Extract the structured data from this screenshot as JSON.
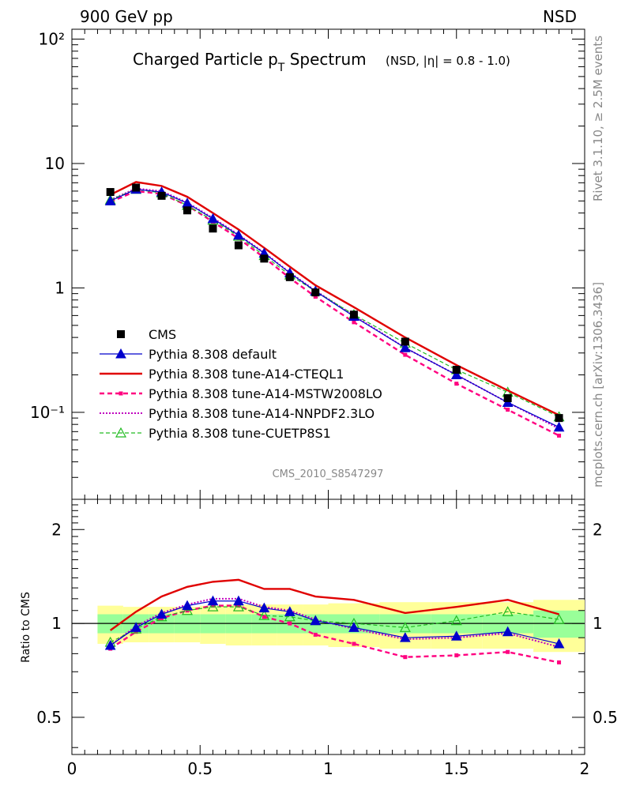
{
  "header": {
    "energy_label": "900 GeV pp",
    "process_label": "NSD",
    "title_main": "Charged Particle p",
    "title_sub": "T",
    "title_tail": " Spectrum",
    "title_cut": "(NSD, |η| = 0.8 - 1.0)",
    "side_label_top": "Rivet 3.1.10, ≥ 2.5M events",
    "side_label_bottom": "mcplots.cern.ch [arXiv:1306.3436]",
    "analysis_id": "CMS_2010_S8547297"
  },
  "colors": {
    "cms": "#000000",
    "default": "#0000cc",
    "cteql1": "#e00000",
    "mstw": "#ff0080",
    "nnpdf": "#c000c0",
    "cuetp8s1": "#22bb22",
    "band_outer": "#ffff99",
    "band_inner": "#99ff99"
  },
  "chart_data": [
    {
      "type": "line",
      "yscale": "log",
      "xlim": [
        0,
        2
      ],
      "ylim": [
        0.02,
        120
      ],
      "ytick_labels": [
        "10⁻¹",
        "1",
        "10",
        "10²"
      ],
      "x": [
        0.15,
        0.25,
        0.35,
        0.45,
        0.55,
        0.65,
        0.75,
        0.85,
        0.95,
        1.1,
        1.3,
        1.5,
        1.7,
        1.9
      ],
      "series": [
        {
          "name": "CMS",
          "values": [
            5.9,
            6.4,
            5.5,
            4.2,
            3.0,
            2.2,
            1.72,
            1.22,
            0.92,
            0.61,
            0.37,
            0.22,
            0.13,
            0.09
          ]
        },
        {
          "name": "Pythia 8.308 default",
          "values": [
            5.0,
            6.2,
            5.9,
            4.8,
            3.6,
            2.65,
            1.9,
            1.32,
            0.94,
            0.59,
            0.33,
            0.2,
            0.12,
            0.076
          ]
        },
        {
          "name": "Pythia 8.308 tune-A14-CTEQL1",
          "values": [
            5.6,
            7.1,
            6.6,
            5.4,
            4.0,
            2.95,
            2.1,
            1.48,
            1.05,
            0.7,
            0.4,
            0.24,
            0.15,
            0.095
          ]
        },
        {
          "name": "Pythia 8.308 tune-A14-MSTW2008LO",
          "values": [
            4.9,
            6.0,
            5.7,
            4.6,
            3.4,
            2.5,
            1.75,
            1.2,
            0.85,
            0.53,
            0.29,
            0.17,
            0.105,
            0.065
          ]
        },
        {
          "name": "Pythia 8.308 tune-A14-NNPDF2.3LO",
          "values": [
            5.1,
            6.3,
            6.0,
            4.85,
            3.65,
            2.68,
            1.92,
            1.33,
            0.95,
            0.6,
            0.33,
            0.2,
            0.12,
            0.074
          ]
        },
        {
          "name": "Pythia 8.308 tune-CUETP8S1",
          "values": [
            5.1,
            6.2,
            5.8,
            4.6,
            3.5,
            2.6,
            1.82,
            1.27,
            0.94,
            0.61,
            0.36,
            0.22,
            0.145,
            0.092
          ]
        }
      ]
    },
    {
      "type": "line",
      "yscale": "log",
      "ylabel": "Ratio to CMS",
      "xlim": [
        0,
        2
      ],
      "ylim": [
        0.38,
        2.5
      ],
      "ytick_labels": [
        "0.5",
        "1",
        "2"
      ],
      "xtick_labels": [
        "0",
        "0.5",
        "1",
        "1.5",
        "2"
      ],
      "bins": [
        0.1,
        0.2,
        0.3,
        0.4,
        0.5,
        0.6,
        0.7,
        0.8,
        0.9,
        1.0,
        1.2,
        1.4,
        1.6,
        1.8,
        2.0
      ],
      "band_inner": [
        0.07,
        0.07,
        0.07,
        0.07,
        0.07,
        0.07,
        0.07,
        0.07,
        0.07,
        0.07,
        0.07,
        0.07,
        0.07,
        0.1
      ],
      "band_outer": [
        0.14,
        0.13,
        0.13,
        0.13,
        0.14,
        0.15,
        0.15,
        0.15,
        0.15,
        0.16,
        0.17,
        0.17,
        0.17,
        0.19
      ],
      "x": [
        0.15,
        0.25,
        0.35,
        0.45,
        0.55,
        0.65,
        0.75,
        0.85,
        0.95,
        1.1,
        1.3,
        1.5,
        1.7,
        1.9
      ],
      "series": [
        {
          "name": "Pythia 8.308 default",
          "values": [
            0.85,
            0.97,
            1.07,
            1.14,
            1.18,
            1.18,
            1.12,
            1.09,
            1.02,
            0.97,
            0.9,
            0.91,
            0.94,
            0.86
          ]
        },
        {
          "name": "Pythia 8.308 tune-A14-CTEQL1",
          "values": [
            0.95,
            1.09,
            1.22,
            1.31,
            1.36,
            1.38,
            1.29,
            1.29,
            1.22,
            1.19,
            1.08,
            1.13,
            1.19,
            1.07
          ]
        },
        {
          "name": "Pythia 8.308 tune-A14-MSTW2008LO",
          "values": [
            0.83,
            0.94,
            1.04,
            1.1,
            1.14,
            1.14,
            1.05,
            1.0,
            0.92,
            0.86,
            0.78,
            0.79,
            0.81,
            0.75
          ]
        },
        {
          "name": "Pythia 8.308 tune-A14-NNPDF2.3LO",
          "values": [
            0.85,
            0.98,
            1.08,
            1.15,
            1.2,
            1.2,
            1.13,
            1.1,
            1.03,
            0.96,
            0.89,
            0.9,
            0.93,
            0.84
          ]
        },
        {
          "name": "Pythia 8.308 tune-CUETP8S1",
          "values": [
            0.87,
            0.96,
            1.05,
            1.1,
            1.13,
            1.13,
            1.06,
            1.05,
            1.02,
            1.0,
            0.97,
            1.02,
            1.09,
            1.03
          ]
        }
      ]
    }
  ]
}
